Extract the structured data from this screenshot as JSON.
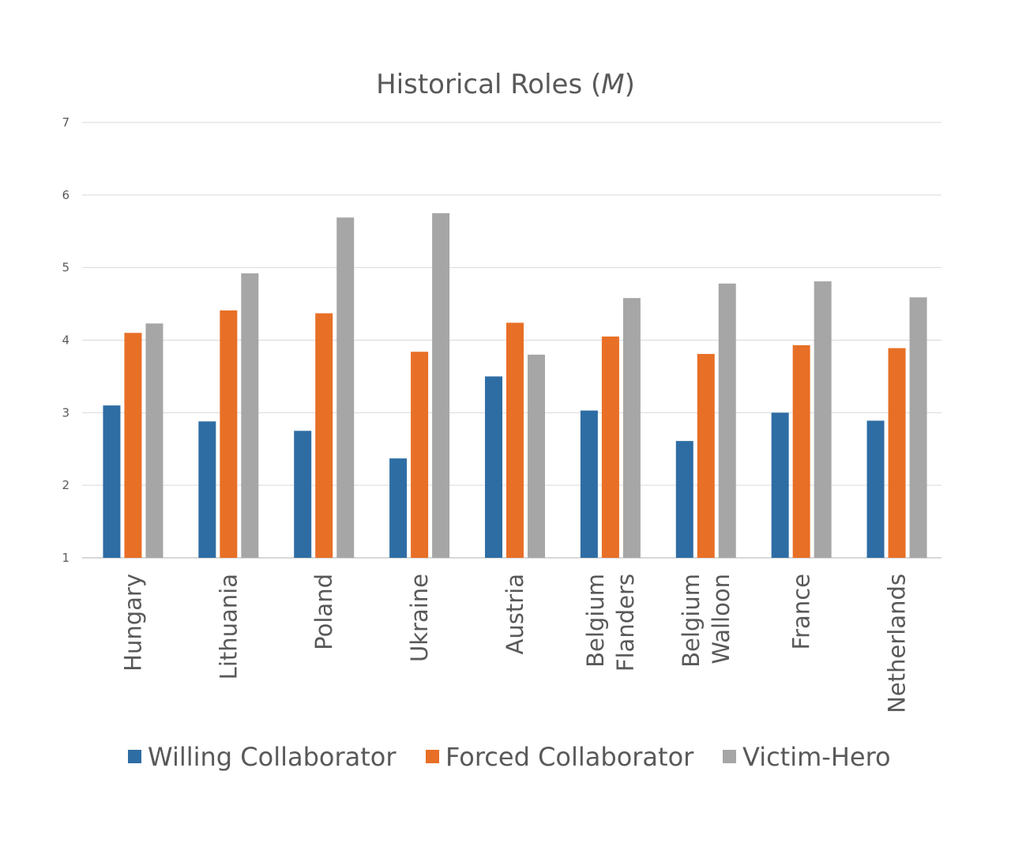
{
  "chart_data": {
    "type": "bar",
    "title_main": "Historical Roles (",
    "title_italic": "M",
    "title_end": ")",
    "xlabel": "",
    "ylabel": "",
    "ylim": [
      1,
      7
    ],
    "yticks": [
      "1",
      "2",
      "3",
      "4",
      "5",
      "6",
      "7"
    ],
    "grid": true,
    "legend_position": "bottom",
    "categories": [
      [
        "Hungary"
      ],
      [
        "Lithuania"
      ],
      [
        "Poland"
      ],
      [
        "Ukraine"
      ],
      [
        "Austria"
      ],
      [
        "Belgium",
        "Flanders"
      ],
      [
        "Belgium",
        "Walloon"
      ],
      [
        "France"
      ],
      [
        "Netherlands"
      ]
    ],
    "series": [
      {
        "name": "Willing Collaborator",
        "color": "#2e6da4",
        "values": [
          3.1,
          2.88,
          2.75,
          2.37,
          3.5,
          3.03,
          2.61,
          3.0,
          2.89
        ]
      },
      {
        "name": "Forced Collaborator",
        "color": "#e86f26",
        "values": [
          4.1,
          4.41,
          4.37,
          3.84,
          4.24,
          4.05,
          3.81,
          3.93,
          3.89
        ]
      },
      {
        "name": "Victim-Hero",
        "color": "#a6a6a6",
        "values": [
          4.23,
          4.92,
          5.69,
          5.75,
          3.8,
          4.58,
          4.78,
          4.81,
          4.59
        ]
      }
    ]
  }
}
